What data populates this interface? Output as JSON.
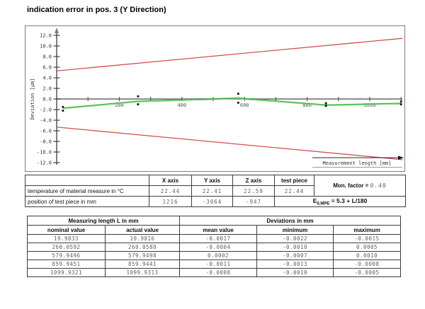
{
  "page": {
    "title": "indication error in pos. 3 (Y Direction)"
  },
  "chart_data": {
    "type": "line",
    "title": "indication error in pos. 3 (Y Direction)",
    "xlabel": "Measurement length [mm]",
    "ylabel": "Deviation [µm]",
    "xlim": [
      0,
      1180
    ],
    "ylim": [
      -12.6,
      12.6
    ],
    "y_tick_min": -12,
    "y_tick_max": 12,
    "y_tick_step": 2,
    "x_minor_tick_step": 100,
    "x_minor_tick_max": 1100,
    "x_ticks_labeled": [
      200,
      400,
      600,
      800,
      1000
    ],
    "grid": "zero-line only",
    "legend": "none",
    "x": [
      20,
      260,
      580,
      860,
      1100
    ],
    "series": [
      {
        "name": "mean deviation",
        "kind": "data",
        "color": "#2fae2f",
        "values": [
          -1.7,
          -0.4,
          0.2,
          -1.1,
          -0.8
        ]
      },
      {
        "name": "minimum deviation",
        "kind": "marker",
        "color": "#151515",
        "values": [
          -2.2,
          -1.0,
          -0.7,
          -1.3,
          -1.0
        ]
      },
      {
        "name": "maximum deviation",
        "kind": "marker",
        "color": "#151515",
        "values": [
          -1.5,
          0.5,
          1.0,
          -0.8,
          -0.5
        ]
      },
      {
        "name": "upper MPE limit E0,MPE = 5.3 + L/180",
        "kind": "limit",
        "color": "#d24f4f",
        "x": [
          0,
          1105
        ],
        "values": [
          5.3,
          11.44
        ]
      },
      {
        "name": "lower MPE limit",
        "kind": "limit",
        "color": "#d24f4f",
        "x": [
          0,
          1105
        ],
        "values": [
          -5.3,
          -11.44
        ]
      }
    ]
  },
  "middle_table": {
    "col_headers": [
      "X axis",
      "Y axis",
      "Z axis",
      "test piece"
    ],
    "mon_factor_label": "Mon. factor =",
    "mon_factor_value": "0.40",
    "rows": [
      {
        "label": "temperature of material measure in °C",
        "values": [
          "22.44",
          "22.41",
          "22.59",
          "22.44"
        ]
      },
      {
        "label": "position of test piece in mm",
        "values": [
          "1216",
          "-3064",
          "-947"
        ]
      }
    ],
    "mpe": {
      "prefix": "E",
      "sub": "0,MPE",
      "rest": " = 5.3 + L/180"
    }
  },
  "bottom_table": {
    "group_headers": [
      "Measuring length L in mm",
      "Deviations in mm"
    ],
    "col_headers": [
      "nominal value",
      "actual value",
      "mean value",
      "minimum",
      "maximum"
    ],
    "rows": [
      [
        "19.9833",
        "19.9816",
        "-0.0017",
        "-0.0022",
        "-0.0015"
      ],
      [
        "260.0592",
        "260.0588",
        "-0.0004",
        "-0.0010",
        "0.0005"
      ],
      [
        "579.9496",
        "579.9498",
        "0.0002",
        "-0.0007",
        "0.0010"
      ],
      [
        "859.9451",
        "859.9441",
        "-0.0011",
        "-0.0013",
        "-0.0008"
      ],
      [
        "1099.9321",
        "1099.9313",
        "-0.0008",
        "-0.0010",
        "-0.0005"
      ]
    ]
  }
}
